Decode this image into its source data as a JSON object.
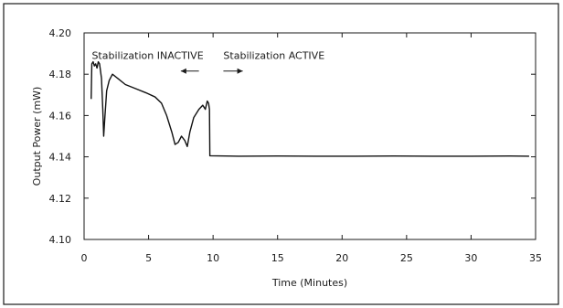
{
  "chart_data": {
    "type": "line",
    "xlabel": "Time (Minutes)",
    "ylabel": "Output Power (mW)",
    "xlim": [
      0,
      35
    ],
    "ylim": [
      4.1,
      4.2
    ],
    "xticks": [
      0,
      5,
      10,
      15,
      20,
      25,
      30,
      35
    ],
    "yticks": [
      "4.10",
      "4.12",
      "4.14",
      "4.16",
      "4.18",
      "4.20"
    ],
    "grid": false,
    "series": [
      {
        "color": "#111111",
        "points": [
          [
            0.55,
            4.168
          ],
          [
            0.6,
            4.185
          ],
          [
            0.7,
            4.186
          ],
          [
            0.8,
            4.184
          ],
          [
            0.9,
            4.185
          ],
          [
            1.0,
            4.183
          ],
          [
            1.1,
            4.186
          ],
          [
            1.2,
            4.185
          ],
          [
            1.35,
            4.178
          ],
          [
            1.45,
            4.163
          ],
          [
            1.52,
            4.15
          ],
          [
            1.6,
            4.158
          ],
          [
            1.75,
            4.172
          ],
          [
            1.95,
            4.177
          ],
          [
            2.2,
            4.18
          ],
          [
            2.6,
            4.178
          ],
          [
            3.2,
            4.175
          ],
          [
            4.0,
            4.173
          ],
          [
            4.8,
            4.171
          ],
          [
            5.5,
            4.169
          ],
          [
            6.0,
            4.166
          ],
          [
            6.4,
            4.16
          ],
          [
            6.8,
            4.152
          ],
          [
            7.05,
            4.146
          ],
          [
            7.3,
            4.147
          ],
          [
            7.55,
            4.15
          ],
          [
            7.8,
            4.148
          ],
          [
            8.0,
            4.145
          ],
          [
            8.2,
            4.152
          ],
          [
            8.5,
            4.159
          ],
          [
            8.9,
            4.163
          ],
          [
            9.2,
            4.165
          ],
          [
            9.4,
            4.163
          ],
          [
            9.55,
            4.167
          ],
          [
            9.65,
            4.166
          ],
          [
            9.72,
            4.163
          ],
          [
            9.75,
            4.1405
          ],
          [
            12.0,
            4.1403
          ],
          [
            15.0,
            4.1404
          ],
          [
            18.0,
            4.1403
          ],
          [
            21.0,
            4.1403
          ],
          [
            24.0,
            4.1404
          ],
          [
            27.0,
            4.1403
          ],
          [
            30.0,
            4.1403
          ],
          [
            33.0,
            4.1404
          ],
          [
            34.5,
            4.1403
          ]
        ]
      }
    ],
    "annotations": [
      {
        "text": "Stabilization INACTIVE",
        "x": 0.6,
        "y": 4.1875,
        "anchor": "start"
      },
      {
        "text": "Stabilization ACTIVE",
        "x": 10.8,
        "y": 4.1875,
        "anchor": "start"
      }
    ],
    "arrows": [
      {
        "from": [
          8.9,
          4.1815
        ],
        "to": [
          7.5,
          4.1815
        ]
      },
      {
        "from": [
          10.8,
          4.1815
        ],
        "to": [
          12.3,
          4.1815
        ]
      }
    ]
  }
}
